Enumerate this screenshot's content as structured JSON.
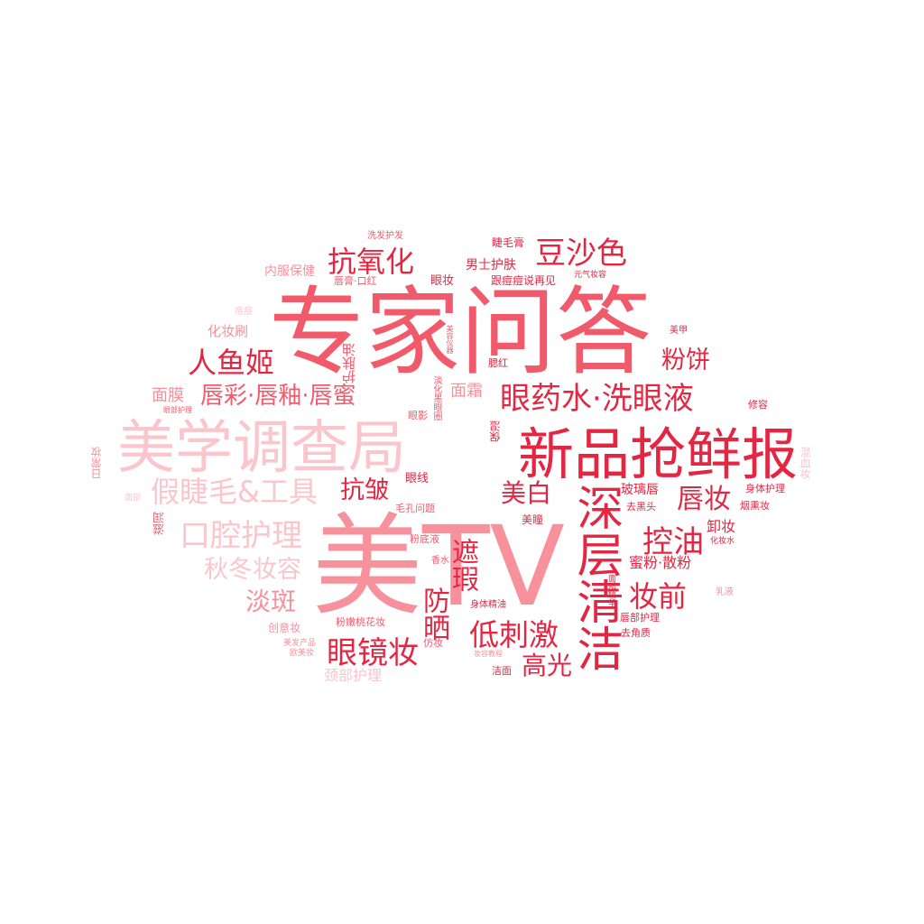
{
  "word_cloud": {
    "words": [
      {
        "text": "专家问答",
        "color": "#f15a6b"
      },
      {
        "text": "美TV",
        "color": "#f7919c"
      },
      {
        "text": "美学调查局",
        "color": "#fbc5cc"
      },
      {
        "text": "新品抢鲜报",
        "color": "#e32743"
      },
      {
        "text": "深层清洁",
        "color": "#e32743"
      },
      {
        "text": "眼药水·洗眼液",
        "color": "#e32743"
      },
      {
        "text": "假睫毛&工具",
        "color": "#fbc5cc"
      },
      {
        "text": "口腔护理",
        "color": "#fbc5cc"
      },
      {
        "text": "秋冬妆容",
        "color": "#fbc5cc"
      },
      {
        "text": "唇彩·唇釉·唇蜜",
        "color": "#f15a6b"
      },
      {
        "text": "人鱼姬",
        "color": "#e32743"
      },
      {
        "text": "抗氧化",
        "color": "#e32743"
      },
      {
        "text": "豆沙色",
        "color": "#e32743"
      },
      {
        "text": "眼镜妆",
        "color": "#e32743"
      },
      {
        "text": "低刺激",
        "color": "#e32743"
      },
      {
        "text": "唇妆",
        "color": "#e32743"
      },
      {
        "text": "控油",
        "color": "#e32743"
      },
      {
        "text": "妆前",
        "color": "#e32743"
      },
      {
        "text": "淡斑",
        "color": "#f7919c"
      },
      {
        "text": "抗皱",
        "color": "#e32743"
      },
      {
        "text": "美白",
        "color": "#e32743"
      },
      {
        "text": "粉饼",
        "color": "#e32743"
      },
      {
        "text": "高光",
        "color": "#e32743"
      },
      {
        "text": "防晒",
        "color": "#e32743"
      },
      {
        "text": "遮瑕",
        "color": "#e32743"
      },
      {
        "text": "面膜",
        "color": "#f7919c"
      },
      {
        "text": "面霜",
        "color": "#f7919c"
      },
      {
        "text": "化妆刷",
        "color": "#f7919c"
      },
      {
        "text": "护肤油",
        "color": "#f15a6b"
      },
      {
        "text": "颈部护理",
        "color": "#fbc5cc"
      },
      {
        "text": "蜜粉·散粉",
        "color": "#e32743"
      },
      {
        "text": "玻璃唇",
        "color": "#e32743"
      },
      {
        "text": "卸妆",
        "color": "#e32743"
      },
      {
        "text": "男士护肤",
        "color": "#e32743"
      },
      {
        "text": "内服保健",
        "color": "#f7919c"
      },
      {
        "text": "唇膏·口红",
        "color": "#f15a6b"
      },
      {
        "text": "眼妆",
        "color": "#e32743"
      },
      {
        "text": "睫毛膏",
        "color": "#e32743"
      },
      {
        "text": "洗发护发",
        "color": "#f15a6b"
      },
      {
        "text": "跟痘痘说再见",
        "color": "#e32743"
      },
      {
        "text": "元气妆容",
        "color": "#e32743"
      },
      {
        "text": "美容仪器",
        "color": "#f15a6b"
      },
      {
        "text": "腮红",
        "color": "#e32743"
      },
      {
        "text": "美甲",
        "color": "#e32743"
      },
      {
        "text": "痘痘",
        "color": "#fbc5cc"
      },
      {
        "text": "眼部护理",
        "color": "#f15a6b"
      },
      {
        "text": "眼影",
        "color": "#f15a6b"
      },
      {
        "text": "淡化黑眼圈",
        "color": "#f15a6b"
      },
      {
        "text": "保湿",
        "color": "#e32743"
      },
      {
        "text": "修容",
        "color": "#e32743"
      },
      {
        "text": "身体护理",
        "color": "#e32743"
      },
      {
        "text": "混血妆",
        "color": "#fbc5cc"
      },
      {
        "text": "日常妆",
        "color": "#f7919c"
      },
      {
        "text": "眼线",
        "color": "#e32743"
      },
      {
        "text": "滋润",
        "color": "#f15a6b"
      },
      {
        "text": "毛孔问题",
        "color": "#f15a6b"
      },
      {
        "text": "去黑头",
        "color": "#e32743"
      },
      {
        "text": "烟熏妆",
        "color": "#e32743"
      },
      {
        "text": "美瞳",
        "color": "#e32743"
      },
      {
        "text": "化妆水",
        "color": "#e32743"
      },
      {
        "text": "粉底液",
        "color": "#f15a6b"
      },
      {
        "text": "香水",
        "color": "#f15a6b"
      },
      {
        "text": "面部精华",
        "color": "#e32743"
      },
      {
        "text": "乳液",
        "color": "#f7919c"
      },
      {
        "text": "身体精油",
        "color": "#e32743"
      },
      {
        "text": "唇部护理",
        "color": "#e32743"
      },
      {
        "text": "去角质",
        "color": "#e32743"
      },
      {
        "text": "粉嫩桃花妆",
        "color": "#f15a6b"
      },
      {
        "text": "创意妆",
        "color": "#f7919c"
      },
      {
        "text": "美发产品",
        "color": "#f7919c"
      },
      {
        "text": "欧美妆",
        "color": "#f7919c"
      },
      {
        "text": "仿妆",
        "color": "#f15a6b"
      },
      {
        "text": "妆容教程",
        "color": "#f7919c"
      },
      {
        "text": "洁面",
        "color": "#e32743"
      },
      {
        "text": "面部",
        "color": "#fbc5cc"
      }
    ]
  }
}
